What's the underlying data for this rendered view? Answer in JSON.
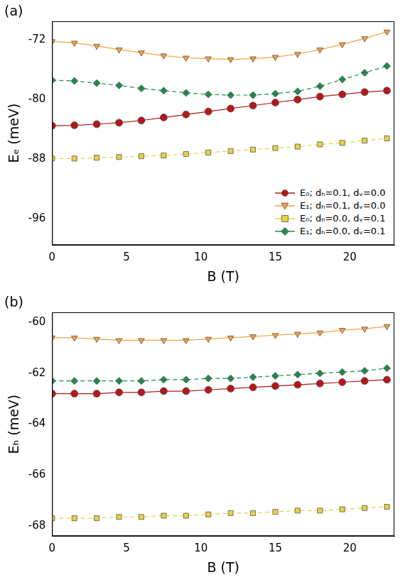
{
  "chart_data": [
    {
      "type": "line",
      "title": "(a)",
      "x_label": "B (T)",
      "y_label": "Eₑ (meV)",
      "x": [
        0,
        1.5,
        3,
        4.5,
        6,
        7.5,
        9,
        10.5,
        12,
        13.5,
        15,
        16.5,
        18,
        19.5,
        21,
        22.5
      ],
      "xlim": [
        0,
        23
      ],
      "xticks": [
        0,
        5,
        10,
        15,
        20
      ],
      "ylim": [
        -99.5,
        -69.5
      ],
      "yticks": [
        -96,
        -88,
        -80,
        -72
      ],
      "legend": "lower right",
      "series": [
        {
          "name": "E₀; dₕ=0.1, dᵥ=0.0",
          "color": "#b3171b",
          "marker": "circle",
          "line_style": "solid",
          "values": [
            -83.5,
            -83.45,
            -83.3,
            -83.1,
            -82.8,
            -82.4,
            -82.0,
            -81.6,
            -81.2,
            -80.8,
            -80.4,
            -80.0,
            -79.6,
            -79.3,
            -79.0,
            -78.8
          ]
        },
        {
          "name": "E₁; dₕ=0.1, dᵥ=0.0",
          "color": "#f5a040",
          "marker": "triangle_down",
          "line_style": "solid",
          "values": [
            -72.2,
            -72.4,
            -72.8,
            -73.3,
            -73.7,
            -74.1,
            -74.4,
            -74.5,
            -74.6,
            -74.5,
            -74.3,
            -73.9,
            -73.3,
            -72.6,
            -71.8,
            -70.9
          ]
        },
        {
          "name": "E₀; dₕ=0.0, dᵥ=0.1",
          "color": "#e6d245",
          "marker": "square",
          "line_style": "dashed",
          "values": [
            -87.9,
            -87.9,
            -87.8,
            -87.7,
            -87.6,
            -87.5,
            -87.3,
            -87.1,
            -86.9,
            -86.7,
            -86.5,
            -86.3,
            -86.0,
            -85.8,
            -85.5,
            -85.2
          ]
        },
        {
          "name": "E₁; dₕ=0.0, dᵥ=0.1",
          "color": "#1f8a4c",
          "marker": "diamond",
          "line_style": "dashed",
          "values": [
            -77.4,
            -77.5,
            -77.8,
            -78.1,
            -78.5,
            -78.8,
            -79.1,
            -79.3,
            -79.4,
            -79.4,
            -79.2,
            -78.9,
            -78.2,
            -77.3,
            -76.4,
            -75.5
          ]
        }
      ]
    },
    {
      "type": "line",
      "title": "(b)",
      "x_label": "B (T)",
      "y_label": "Eₕ (meV)",
      "x": [
        0,
        1.5,
        3,
        4.5,
        6,
        7.5,
        9,
        10.5,
        12,
        13.5,
        15,
        16.5,
        18,
        19.5,
        21,
        22.5
      ],
      "xlim": [
        0,
        23
      ],
      "xticks": [
        0,
        5,
        10,
        15,
        20
      ],
      "ylim": [
        -68.4,
        -59.6
      ],
      "yticks": [
        -68,
        -66,
        -64,
        -62,
        -60
      ],
      "legend": false,
      "series": [
        {
          "name": "E₀; dₕ=0.1, dᵥ=0.0",
          "color": "#b3171b",
          "marker": "circle",
          "line_style": "solid",
          "values": [
            -62.8,
            -62.8,
            -62.8,
            -62.75,
            -62.75,
            -62.7,
            -62.7,
            -62.65,
            -62.6,
            -62.55,
            -62.5,
            -62.45,
            -62.4,
            -62.35,
            -62.3,
            -62.25
          ]
        },
        {
          "name": "E₁; dₕ=0.1, dᵥ=0.0",
          "color": "#f5a040",
          "marker": "triangle_down",
          "line_style": "solid",
          "values": [
            -60.6,
            -60.6,
            -60.65,
            -60.7,
            -60.7,
            -60.7,
            -60.7,
            -60.65,
            -60.6,
            -60.55,
            -60.5,
            -60.45,
            -60.4,
            -60.3,
            -60.25,
            -60.15
          ]
        },
        {
          "name": "E₀; dₕ=0.0, dᵥ=0.1",
          "color": "#e6d245",
          "marker": "square",
          "line_style": "dashed",
          "values": [
            -67.7,
            -67.7,
            -67.7,
            -67.65,
            -67.65,
            -67.6,
            -67.6,
            -67.55,
            -67.5,
            -67.5,
            -67.45,
            -67.4,
            -67.4,
            -67.35,
            -67.3,
            -67.25
          ]
        },
        {
          "name": "E₁; dₕ=0.0, dᵥ=0.1",
          "color": "#1f8a4c",
          "marker": "diamond",
          "line_style": "dashed",
          "values": [
            -62.3,
            -62.3,
            -62.3,
            -62.3,
            -62.3,
            -62.25,
            -62.25,
            -62.2,
            -62.2,
            -62.15,
            -62.1,
            -62.05,
            -62.0,
            -61.95,
            -61.9,
            -61.8
          ]
        }
      ]
    }
  ]
}
